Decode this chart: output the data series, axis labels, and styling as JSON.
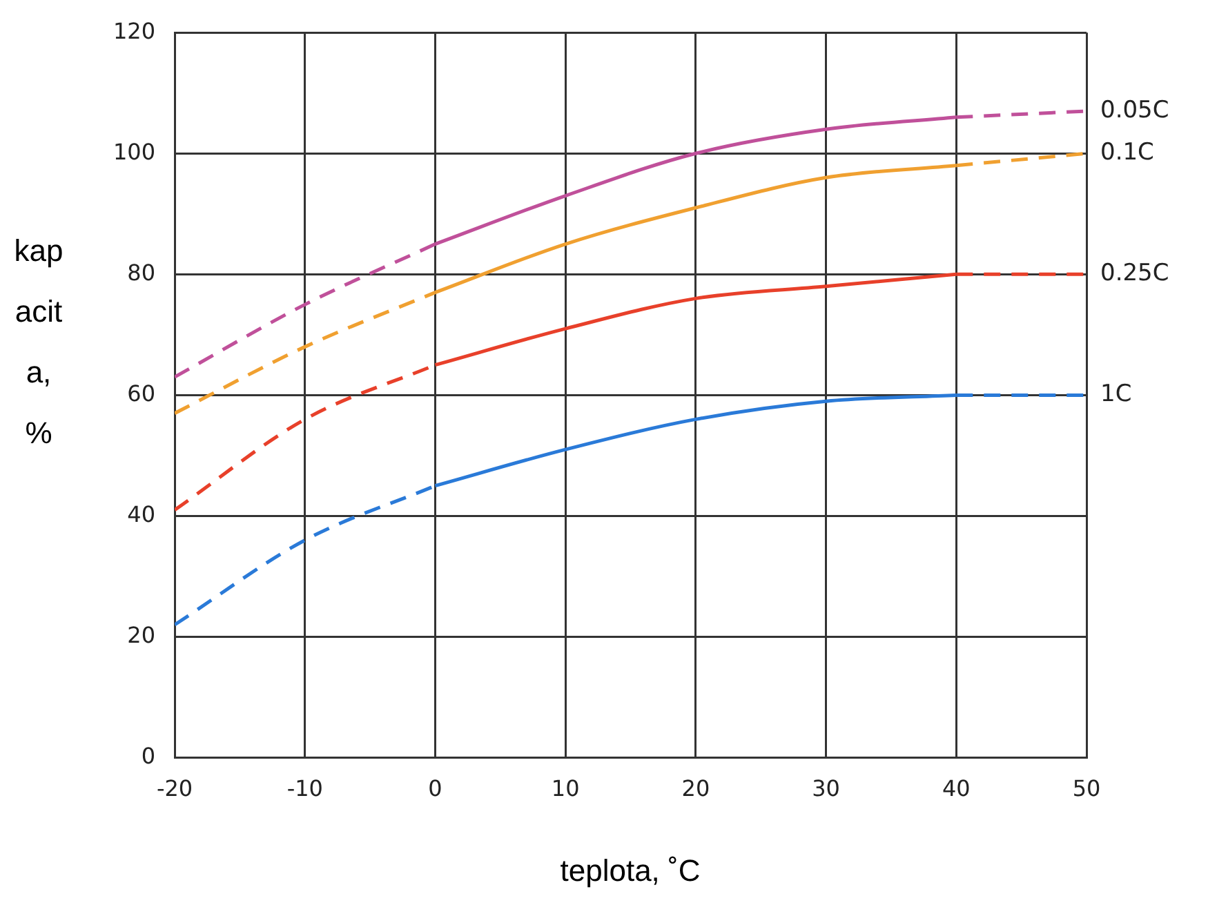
{
  "chart_data": {
    "type": "line",
    "xlabel": "teplota, ˚C",
    "ylabel": "kapacita, %",
    "xlim": [
      -20,
      50
    ],
    "xticks": [
      -20,
      -10,
      0,
      10,
      20,
      30,
      40,
      50
    ],
    "ylim": [
      0,
      120
    ],
    "yticks": [
      0,
      20,
      40,
      60,
      80,
      100,
      120
    ],
    "grid": true,
    "legend": false,
    "marker": "none",
    "series": [
      {
        "color": "#c0509a",
        "line_style": "dashed",
        "x": [
          -20,
          -10,
          0
        ],
        "values": [
          63,
          75,
          85
        ]
      },
      {
        "color": "#c0509a",
        "line_style": "solid",
        "x": [
          0,
          10,
          20,
          30,
          40
        ],
        "values": [
          85,
          93,
          100,
          104,
          106
        ]
      },
      {
        "name": "0.05C",
        "color": "#c0509a",
        "line_style": "dashed",
        "x": [
          40,
          50
        ],
        "values": [
          106,
          107
        ]
      },
      {
        "color": "#f0a030",
        "line_style": "dashed",
        "x": [
          -20,
          -10,
          0
        ],
        "values": [
          57,
          68,
          77
        ]
      },
      {
        "color": "#f0a030",
        "line_style": "solid",
        "x": [
          0,
          10,
          20,
          30,
          40
        ],
        "values": [
          77,
          85,
          91,
          96,
          98
        ]
      },
      {
        "name": "0.1C",
        "color": "#f0a030",
        "line_style": "dashed",
        "x": [
          40,
          50
        ],
        "values": [
          98,
          100
        ]
      },
      {
        "color": "#e8402a",
        "line_style": "dashed",
        "x": [
          -20,
          -10,
          0
        ],
        "values": [
          41,
          56,
          65
        ]
      },
      {
        "color": "#e8402a",
        "line_style": "solid",
        "x": [
          0,
          10,
          20,
          30,
          40
        ],
        "values": [
          65,
          71,
          76,
          78,
          80
        ]
      },
      {
        "name": "0.25C",
        "color": "#e8402a",
        "line_style": "dashed",
        "x": [
          40,
          50
        ],
        "values": [
          80,
          80
        ]
      },
      {
        "color": "#2a7ad8",
        "line_style": "dashed",
        "x": [
          -20,
          -10,
          0
        ],
        "values": [
          22,
          36,
          45
        ]
      },
      {
        "color": "#2a7ad8",
        "line_style": "solid",
        "x": [
          0,
          10,
          20,
          30,
          40
        ],
        "values": [
          45,
          51,
          56,
          59,
          60
        ]
      },
      {
        "name": "1C",
        "color": "#2a7ad8",
        "line_style": "dashed",
        "x": [
          40,
          50
        ],
        "values": [
          60,
          60
        ]
      }
    ]
  }
}
